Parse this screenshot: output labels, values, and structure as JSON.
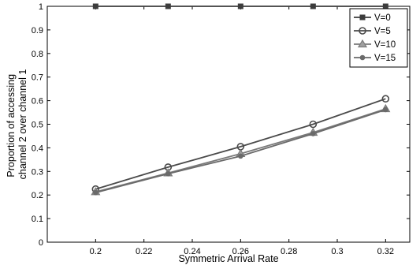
{
  "chart_data": {
    "type": "line",
    "title": "",
    "xlabel": "Symmetric Arrival Rate",
    "ylabel_lines": [
      "Proportion of accessing",
      "channel 2 over channel 1"
    ],
    "xlim": [
      0.18,
      0.33
    ],
    "ylim": [
      0,
      1
    ],
    "x_ticks": [
      0.2,
      0.22,
      0.24,
      0.26,
      0.28,
      0.3,
      0.32
    ],
    "x_tick_labels": [
      "0.2",
      "0.22",
      "0.24",
      "0.26",
      "0.28",
      "0.3",
      "0.32"
    ],
    "y_ticks": [
      0,
      0.1,
      0.2,
      0.3,
      0.4,
      0.5,
      0.6,
      0.7,
      0.8,
      0.9,
      1
    ],
    "y_tick_labels": [
      "0",
      "0.1",
      "0.2",
      "0.3",
      "0.4",
      "0.5",
      "0.6",
      "0.7",
      "0.8",
      "0.9",
      "1"
    ],
    "grid": false,
    "legend_position": "top-right",
    "x": [
      0.2,
      0.23,
      0.26,
      0.29,
      0.32
    ],
    "series": [
      {
        "name": "V=0",
        "values": [
          1.0,
          1.0,
          1.0,
          1.0,
          1.0
        ],
        "marker": "square",
        "color": "#3c3c3c"
      },
      {
        "name": "V=5",
        "values": [
          0.225,
          0.318,
          0.405,
          0.5,
          0.608
        ],
        "marker": "circle",
        "color": "#4a4a4a"
      },
      {
        "name": "V=10",
        "values": [
          0.213,
          0.293,
          0.375,
          0.465,
          0.565
        ],
        "marker": "triangle",
        "color": "#7a7a7a"
      },
      {
        "name": "V=15",
        "values": [
          0.21,
          0.29,
          0.365,
          0.46,
          0.562
        ],
        "marker": "dot",
        "color": "#6a6a6a"
      }
    ]
  }
}
